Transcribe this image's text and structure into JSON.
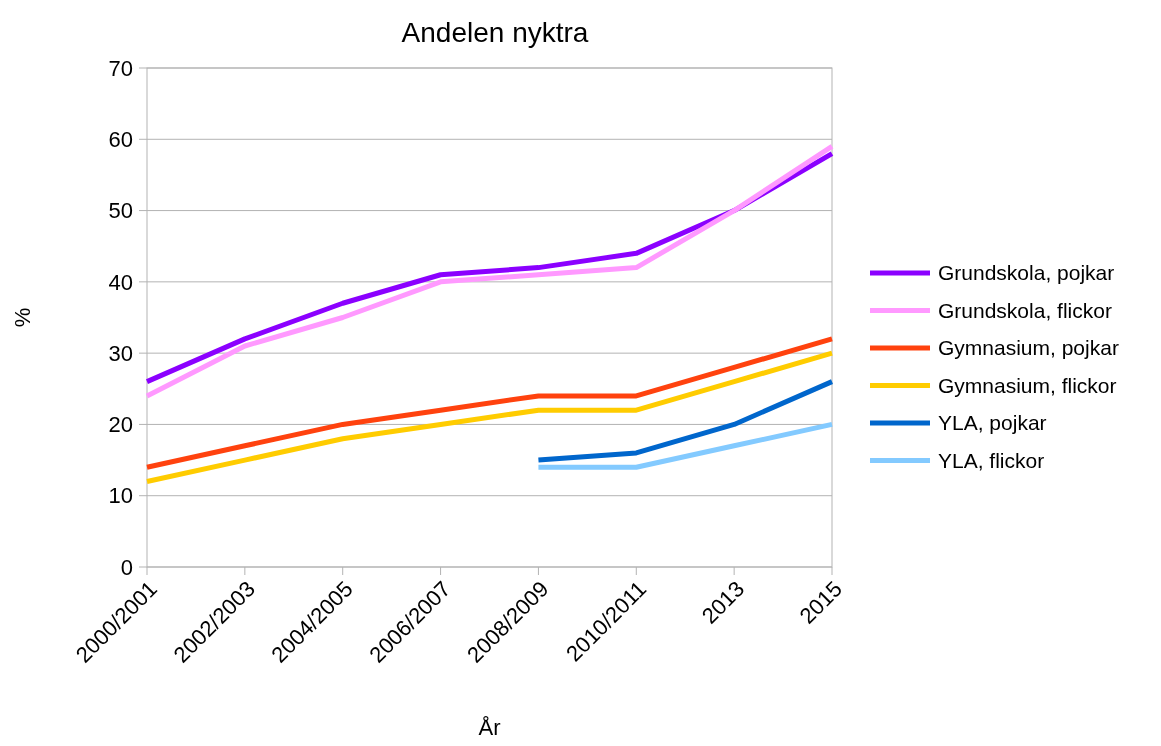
{
  "chart_data": {
    "type": "line",
    "title": "Andelen nyktra",
    "xlabel": "År",
    "ylabel": "%",
    "categories": [
      "2000/2001",
      "2002/2003",
      "2004/2005",
      "2006/2007",
      "2008/2009",
      "2010/2011",
      "2013",
      "2015"
    ],
    "series": [
      {
        "name": "Grundskola, pojkar",
        "color": "#8b00ff",
        "values": [
          26,
          32,
          37,
          41,
          42,
          44,
          50,
          58
        ]
      },
      {
        "name": "Grundskola, flickor",
        "color": "#ff99ff",
        "values": [
          24,
          31,
          35,
          40,
          41,
          42,
          50,
          59
        ]
      },
      {
        "name": "Gymnasium, pojkar",
        "color": "#ff420e",
        "values": [
          14,
          17,
          20,
          22,
          24,
          24,
          28,
          32
        ]
      },
      {
        "name": "Gymnasium, flickor",
        "color": "#ffcc00",
        "values": [
          12,
          15,
          18,
          20,
          22,
          22,
          26,
          30
        ]
      },
      {
        "name": "YLA, pojkar",
        "color": "#0066cc",
        "values": [
          null,
          null,
          null,
          null,
          15,
          16,
          20,
          26
        ]
      },
      {
        "name": "YLA, flickor",
        "color": "#83caff",
        "values": [
          null,
          null,
          null,
          null,
          14,
          14,
          17,
          20
        ]
      }
    ],
    "ylim": [
      0,
      70
    ],
    "yticks": [
      0,
      10,
      20,
      30,
      40,
      50,
      60,
      70
    ],
    "grid": "y",
    "legend": "right",
    "marker": "none",
    "line_style": "solid"
  }
}
